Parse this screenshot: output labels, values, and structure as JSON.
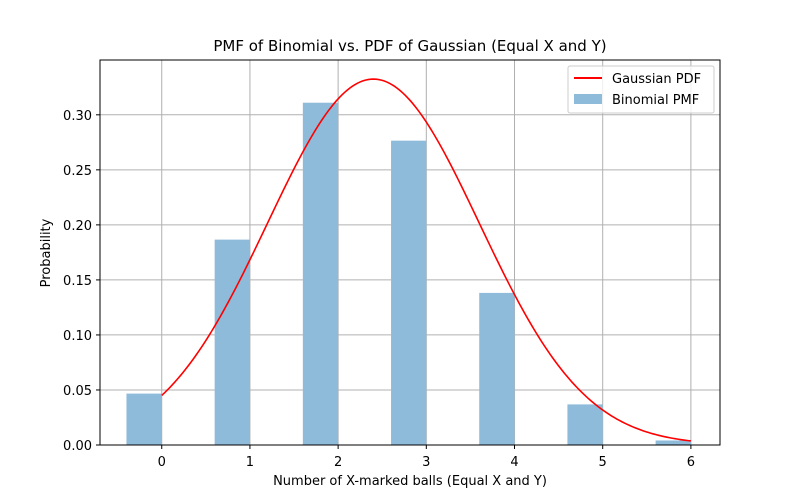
{
  "chart_data": {
    "type": "bar",
    "title": "PMF of Binomial vs. PDF of Gaussian (Equal X and Y)",
    "xlabel": "Number of X-marked balls (Equal X and Y)",
    "ylabel": "Probability",
    "xlim": [
      -0.7,
      6.33
    ],
    "ylim": [
      0,
      0.3498
    ],
    "xticks": [
      0,
      1,
      2,
      3,
      4,
      5,
      6
    ],
    "xtick_labels": [
      "0",
      "1",
      "2",
      "3",
      "4",
      "5",
      "6"
    ],
    "yticks": [
      0,
      0.05,
      0.1,
      0.15,
      0.2,
      0.25,
      0.3
    ],
    "ytick_labels": [
      "0.00",
      "0.05",
      "0.10",
      "0.15",
      "0.20",
      "0.25",
      "0.30"
    ],
    "grid": true,
    "legend_position": "top-right",
    "bar_width": 0.4,
    "bar_offset": -0.2,
    "bar_color": "#8fbbdb",
    "line_color": "#ff0000",
    "series": [
      {
        "name": "Binomial PMF",
        "kind": "bar",
        "x": [
          0,
          1,
          2,
          3,
          4,
          5,
          6
        ],
        "values": [
          0.0467,
          0.1866,
          0.311,
          0.2765,
          0.1382,
          0.0369,
          0.0041
        ]
      },
      {
        "name": "Gaussian PDF",
        "kind": "line",
        "mean": 2.4,
        "std": 1.2,
        "x_range": [
          0,
          6
        ]
      }
    ],
    "legend_order": [
      "Gaussian PDF",
      "Binomial PMF"
    ]
  }
}
